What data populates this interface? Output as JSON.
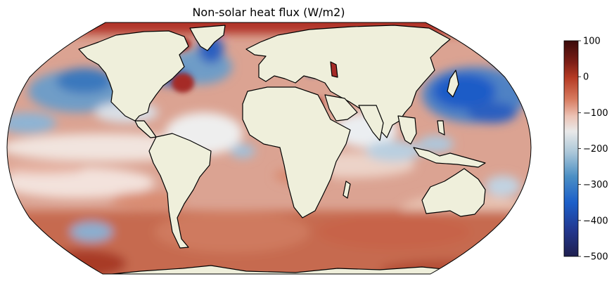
{
  "chart_data": {
    "type": "heatmap",
    "title": "Non-solar heat flux (W/m2)",
    "projection": "Robinson",
    "colorbar": {
      "min": -500,
      "max": 100,
      "ticks": [
        100,
        0,
        -100,
        -200,
        -300,
        -400,
        -500
      ],
      "orientation": "vertical",
      "placement": "right"
    },
    "colors": {
      "land": "#efefdb",
      "coastline": "#000000",
      "cmap_low": "#1f1f4f",
      "cmap_blue": "#1c5fc9",
      "cmap_mid": "#e9e9e9",
      "cmap_red": "#b53a23",
      "cmap_high": "#3a0b0b"
    }
  }
}
